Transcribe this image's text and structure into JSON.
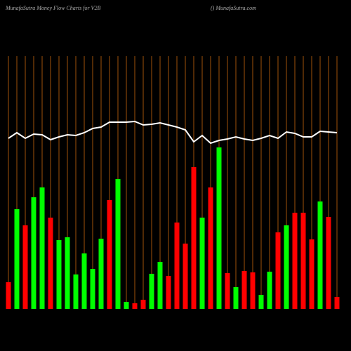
{
  "chart_data": {
    "type": "bar",
    "title": "MunafaSutra  Money Flow  Charts for V2B",
    "subtitle": "() MunafaSutra.com",
    "values": [
      38,
      142,
      119,
      159,
      173,
      130,
      98,
      102,
      49,
      79,
      57,
      100,
      155,
      185,
      10,
      8,
      13,
      50,
      67,
      47,
      123,
      93,
      202,
      130,
      173,
      230,
      51,
      31,
      54,
      52,
      20,
      53,
      109,
      119,
      137,
      137,
      99,
      153,
      131,
      17
    ],
    "colors": [
      "#ff0000",
      "#00ff00",
      "#ff0000",
      "#00ff00",
      "#00ff00",
      "#ff0000",
      "#00ff00",
      "#00ff00",
      "#00ff00",
      "#00ff00",
      "#00ff00",
      "#00ff00",
      "#ff0000",
      "#00ff00",
      "#00ff00",
      "#ff0000",
      "#ff0000",
      "#00ff00",
      "#00ff00",
      "#ff0000",
      "#ff0000",
      "#ff0000",
      "#ff0000",
      "#00ff00",
      "#ff0000",
      "#00ff00",
      "#ff0000",
      "#00ff00",
      "#ff0000",
      "#ff0000",
      "#00ff00",
      "#00ff00",
      "#ff0000",
      "#00ff00",
      "#ff0000",
      "#ff0000",
      "#ff0000",
      "#00ff00",
      "#ff0000",
      "#ff0000"
    ],
    "line_values": [
      243,
      251,
      243,
      249,
      248,
      241,
      245,
      248,
      247,
      251,
      257,
      259,
      266,
      266,
      266,
      267,
      262,
      263,
      265,
      262,
      259,
      255,
      238,
      247,
      236,
      240,
      242,
      245,
      242,
      240,
      243,
      247,
      243,
      252,
      250,
      245,
      245,
      253,
      252,
      251
    ],
    "line_color": "#ffffff",
    "grid_color": "#a0520a",
    "ylim": [
      0,
      360
    ],
    "grid": true
  }
}
